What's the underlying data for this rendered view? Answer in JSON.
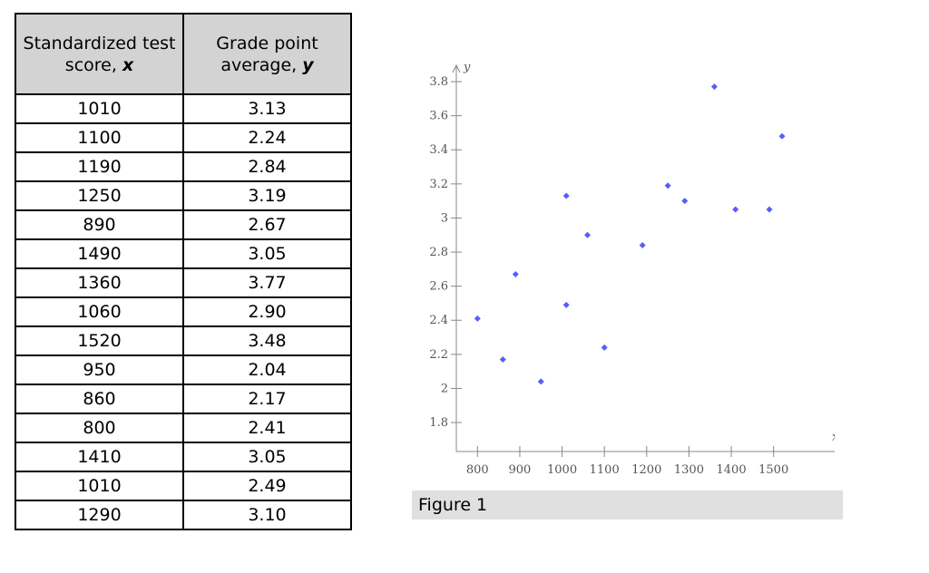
{
  "table": {
    "header_x_line1": "Standardized test",
    "header_x_line2": "score, ",
    "header_x_var": "x",
    "header_y_line1": "Grade point",
    "header_y_line2": "average, ",
    "header_y_var": "y",
    "rows": [
      {
        "x": "1010",
        "y": "3.13"
      },
      {
        "x": "1100",
        "y": "2.24"
      },
      {
        "x": "1190",
        "y": "2.84"
      },
      {
        "x": "1250",
        "y": "3.19"
      },
      {
        "x": "890",
        "y": "2.67"
      },
      {
        "x": "1490",
        "y": "3.05"
      },
      {
        "x": "1360",
        "y": "3.77"
      },
      {
        "x": "1060",
        "y": "2.90"
      },
      {
        "x": "1520",
        "y": "3.48"
      },
      {
        "x": "950",
        "y": "2.04"
      },
      {
        "x": "860",
        "y": "2.17"
      },
      {
        "x": "800",
        "y": "2.41"
      },
      {
        "x": "1410",
        "y": "3.05"
      },
      {
        "x": "1010",
        "y": "2.49"
      },
      {
        "x": "1290",
        "y": "3.10"
      }
    ]
  },
  "chart_data": {
    "type": "scatter",
    "xlabel": "x",
    "ylabel": "y",
    "xlim": [
      750,
      1580
    ],
    "ylim": [
      1.63,
      3.88
    ],
    "x_ticks": [
      800,
      900,
      1000,
      1100,
      1200,
      1300,
      1400,
      1500
    ],
    "y_ticks": [
      1.8,
      2,
      2.2,
      2.4,
      2.6,
      2.8,
      3,
      3.2,
      3.4,
      3.6,
      3.8
    ],
    "y_tick_labels": [
      "1.8",
      "2",
      "2.2",
      "2.4",
      "2.6",
      "2.8",
      "3",
      "3.2",
      "3.4",
      "3.6",
      "3.8"
    ],
    "x": [
      1010,
      1100,
      1190,
      1250,
      890,
      1490,
      1360,
      1060,
      1520,
      950,
      860,
      800,
      1410,
      1010,
      1290
    ],
    "y": [
      3.13,
      2.24,
      2.84,
      3.19,
      2.67,
      3.05,
      3.77,
      2.9,
      3.48,
      2.04,
      2.17,
      2.41,
      3.05,
      2.49,
      3.1
    ],
    "point_color": "#5b5bff",
    "axis_color": "#888888",
    "grid": false
  },
  "caption": "Figure 1"
}
